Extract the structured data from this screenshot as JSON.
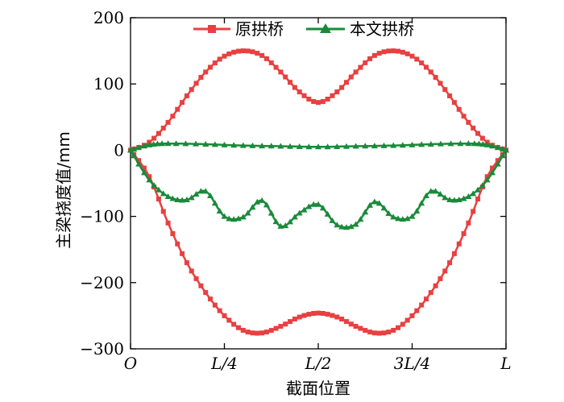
{
  "chart_data": {
    "type": "line",
    "xlabel": "截面位置",
    "ylabel": "主梁挠度值/mm",
    "x_tick_labels": [
      "O",
      "L/4",
      "L/2",
      "3L/4",
      "L"
    ],
    "x_tick_values": [
      0,
      0.25,
      0.5,
      0.75,
      1.0
    ],
    "ylim": [
      -300,
      200
    ],
    "y_ticks": [
      200,
      100,
      0,
      -100,
      -200,
      -300
    ],
    "y_tick_labels": [
      "200",
      "100",
      "0",
      "−100",
      "−200",
      "−300"
    ],
    "grid": false,
    "legend_position": "top-center",
    "series": [
      {
        "name": "原拱桥",
        "marker": "square",
        "color": "#e84040",
        "upper_x": [
          0,
          0.05,
          0.1,
          0.15,
          0.2,
          0.25,
          0.3,
          0.35,
          0.4,
          0.45,
          0.5,
          0.55,
          0.6,
          0.65,
          0.7,
          0.75,
          0.8,
          0.85,
          0.9,
          0.95,
          1.0
        ],
        "upper_y": [
          0,
          12,
          42,
          82,
          118,
          142,
          150,
          143,
          118,
          88,
          72,
          88,
          118,
          143,
          150,
          142,
          118,
          82,
          42,
          12,
          0
        ],
        "lower_x": [
          0,
          0.05,
          0.1,
          0.15,
          0.2,
          0.25,
          0.3,
          0.35,
          0.4,
          0.45,
          0.5,
          0.55,
          0.6,
          0.65,
          0.7,
          0.75,
          0.8,
          0.85,
          0.9,
          0.95,
          1.0
        ],
        "lower_y": [
          0,
          -40,
          -110,
          -170,
          -215,
          -250,
          -272,
          -276,
          -266,
          -252,
          -246,
          -252,
          -266,
          -276,
          -272,
          -250,
          -215,
          -170,
          -110,
          -40,
          0
        ]
      },
      {
        "name": "本文拱桥",
        "marker": "triangle",
        "color": "#1a8a3a",
        "upper_x": [
          0,
          0.05,
          0.1,
          0.2,
          0.3,
          0.4,
          0.5,
          0.6,
          0.7,
          0.8,
          0.9,
          0.95,
          1.0
        ],
        "upper_y": [
          0,
          8,
          10,
          9,
          7,
          6,
          5,
          6,
          7,
          9,
          10,
          8,
          0
        ],
        "lower_x": [
          0,
          0.05,
          0.1,
          0.15,
          0.2,
          0.25,
          0.3,
          0.35,
          0.4,
          0.45,
          0.5,
          0.55,
          0.6,
          0.65,
          0.7,
          0.75,
          0.8,
          0.85,
          0.9,
          0.95,
          1.0
        ],
        "lower_y": [
          0,
          -45,
          -70,
          -75,
          -62,
          -100,
          -101,
          -76,
          -115,
          -95,
          -82,
          -113,
          -112,
          -78,
          -101,
          -100,
          -62,
          -75,
          -70,
          -45,
          0
        ]
      }
    ]
  }
}
